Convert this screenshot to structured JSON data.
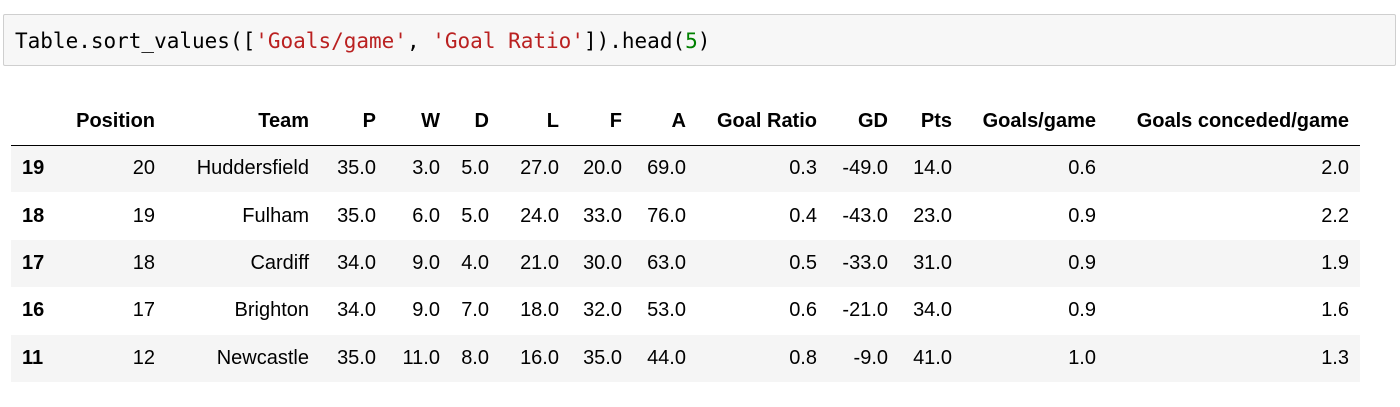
{
  "code_cell": {
    "obj": "Table",
    "method": ".sort_values",
    "open": "([",
    "arg1": "'Goals/game'",
    "sep": ", ",
    "arg2": "'Goal Ratio'",
    "close": "]).head(",
    "num": "5",
    "end": ")"
  },
  "table": {
    "columns": [
      "Position",
      "Team",
      "P",
      "W",
      "D",
      "L",
      "F",
      "A",
      "Goal Ratio",
      "GD",
      "Pts",
      "Goals/game",
      "Goals conceded/game"
    ],
    "rows": [
      {
        "index": "19",
        "cells": [
          "20",
          "Huddersfield",
          "35.0",
          "3.0",
          "5.0",
          "27.0",
          "20.0",
          "69.0",
          "0.3",
          "-49.0",
          "14.0",
          "0.6",
          "2.0"
        ]
      },
      {
        "index": "18",
        "cells": [
          "19",
          "Fulham",
          "35.0",
          "6.0",
          "5.0",
          "24.0",
          "33.0",
          "76.0",
          "0.4",
          "-43.0",
          "23.0",
          "0.9",
          "2.2"
        ]
      },
      {
        "index": "17",
        "cells": [
          "18",
          "Cardiff",
          "34.0",
          "9.0",
          "4.0",
          "21.0",
          "30.0",
          "63.0",
          "0.5",
          "-33.0",
          "31.0",
          "0.9",
          "1.9"
        ]
      },
      {
        "index": "16",
        "cells": [
          "17",
          "Brighton",
          "34.0",
          "9.0",
          "7.0",
          "18.0",
          "32.0",
          "53.0",
          "0.6",
          "-21.0",
          "34.0",
          "0.9",
          "1.6"
        ]
      },
      {
        "index": "11",
        "cells": [
          "12",
          "Newcastle",
          "35.0",
          "11.0",
          "8.0",
          "16.0",
          "35.0",
          "44.0",
          "0.8",
          "-9.0",
          "41.0",
          "1.0",
          "1.3"
        ]
      }
    ]
  }
}
